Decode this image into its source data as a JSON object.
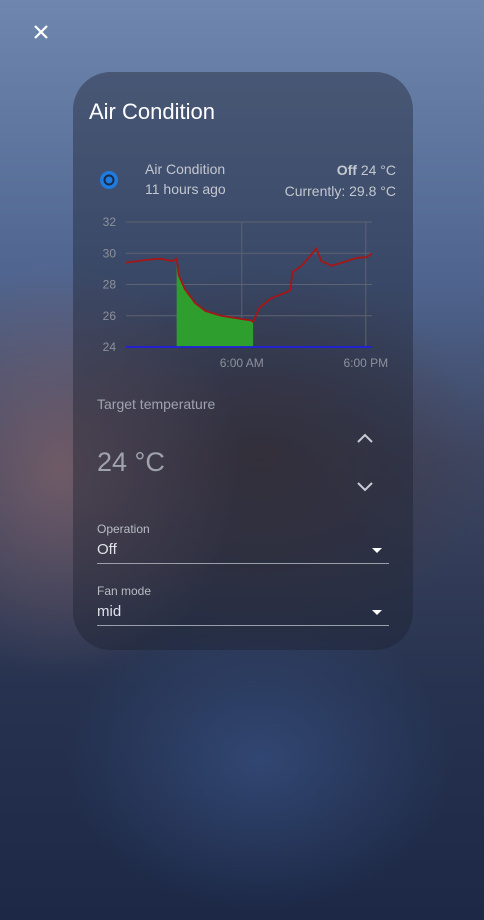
{
  "dialog": {
    "title": "Air Condition"
  },
  "entity": {
    "name": "Air Condition",
    "last_changed": "11 hours ago",
    "state": "Off",
    "target": "24 °C",
    "current": "Currently: 29.8 °C"
  },
  "chart_data": {
    "type": "line",
    "x": [
      -5.2,
      -2.9,
      -1.9,
      -0.7,
      -0.3,
      -0.1,
      0.5,
      1.5,
      2.5,
      4,
      5.9,
      6.9,
      7.1,
      7.7,
      8.8,
      10.3,
      10.7,
      10.9,
      11.8,
      12.7,
      13.2,
      13.7,
      14.7,
      15.7,
      17.1,
      18.1,
      18.6
    ],
    "series": [
      {
        "color": "#a51616",
        "values": [
          29.4,
          29.6,
          29.65,
          29.5,
          29.65,
          28.6,
          27.7,
          26.8,
          26.3,
          26,
          25.8,
          25.7,
          25.6,
          26.5,
          27.1,
          27.5,
          27.65,
          28.8,
          29.2,
          29.9,
          30.3,
          29.5,
          29.2,
          29.4,
          29.7,
          29.75,
          30
        ]
      },
      {
        "color": "#1f1fe0",
        "values": [
          24,
          24,
          24,
          24,
          24,
          24,
          24,
          24,
          24,
          24,
          24,
          24,
          24,
          24,
          24,
          24,
          24,
          24,
          24,
          24,
          24,
          24,
          24,
          24,
          24,
          24,
          24
        ]
      },
      {
        "color": "#2e9e2e",
        "fill": true,
        "values": [
          null,
          null,
          null,
          null,
          29.65,
          28.6,
          27.7,
          26.8,
          26.3,
          26,
          25.8,
          25.7,
          25.6,
          null,
          null,
          null,
          null,
          null,
          null,
          null,
          null,
          null,
          null,
          null,
          null,
          null,
          null
        ]
      }
    ],
    "xlim": [
      -5.2,
      18.6
    ],
    "ylim": [
      24,
      32
    ],
    "xticks": [
      {
        "value": 6,
        "label": "6:00 AM"
      },
      {
        "value": 18,
        "label": "6:00 PM"
      }
    ],
    "yticks": [
      24,
      26,
      28,
      30,
      32
    ],
    "grid": true
  },
  "target_temperature": {
    "label": "Target temperature",
    "value": "24 °C"
  },
  "operation": {
    "label": "Operation",
    "value": "Off"
  },
  "fan_mode": {
    "label": "Fan mode",
    "value": "mid"
  }
}
